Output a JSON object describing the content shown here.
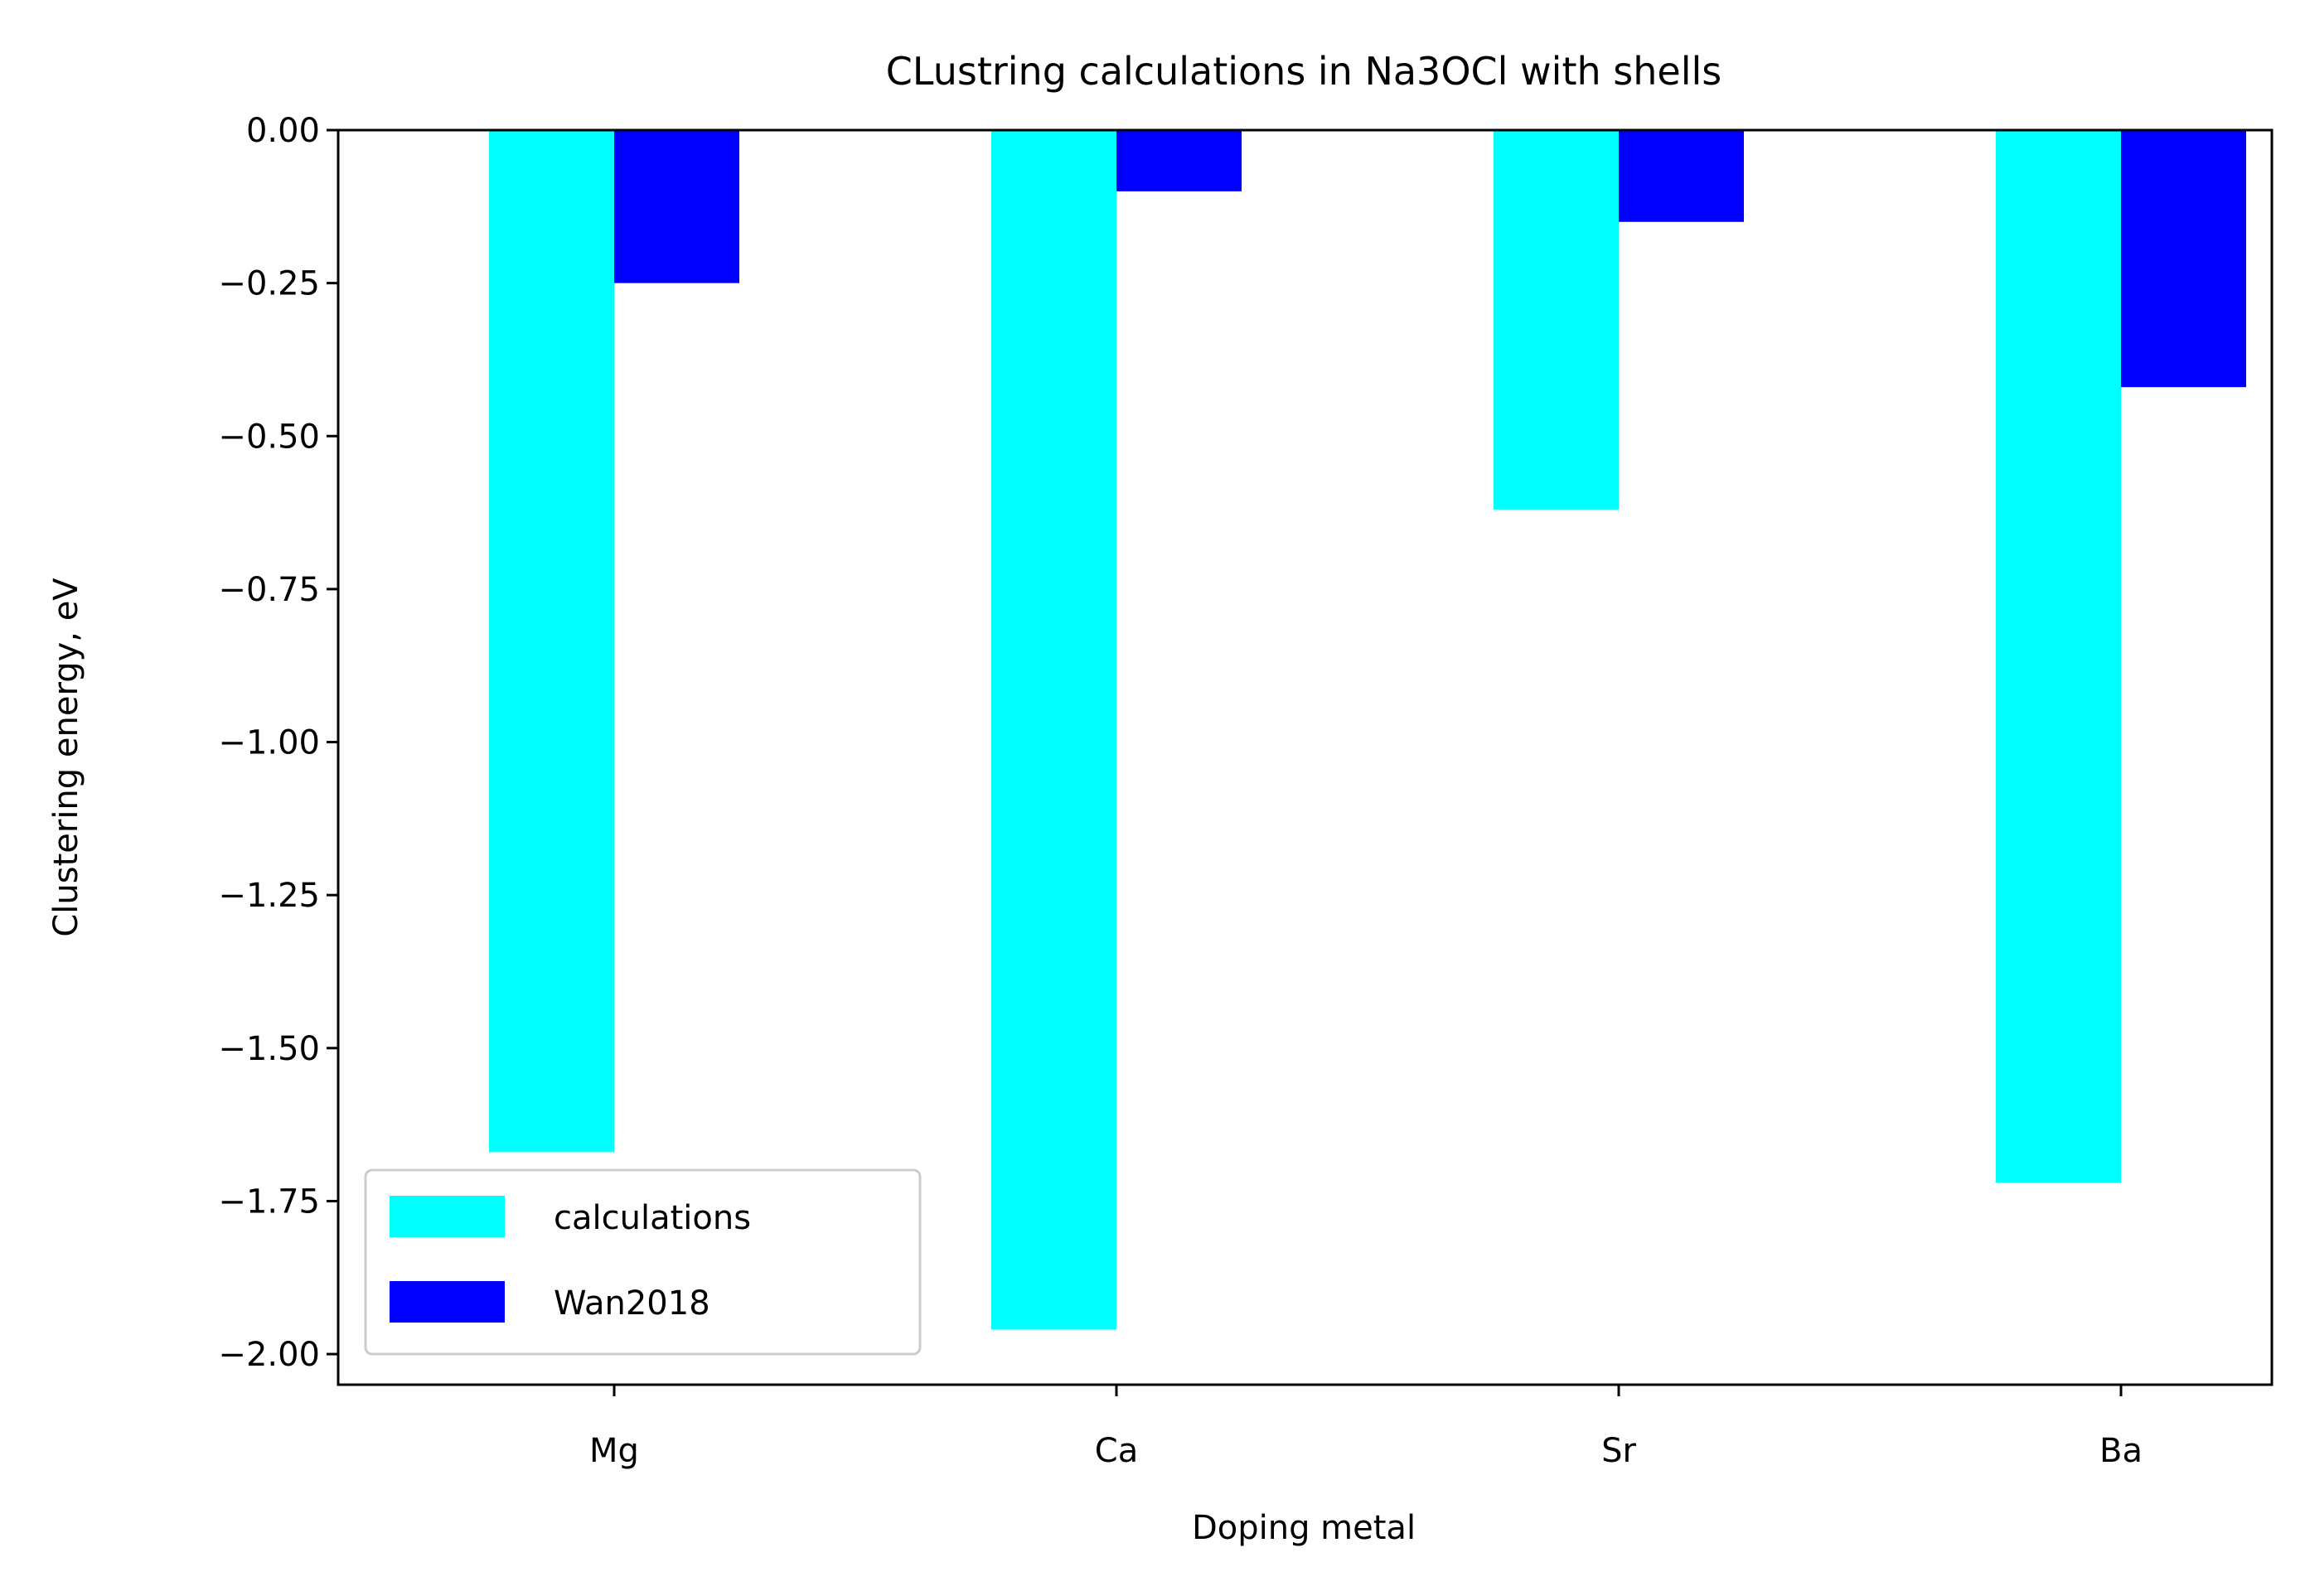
{
  "chart_data": {
    "type": "bar",
    "title": "CLustring calculations in Na3OCl with shells",
    "xlabel": "Doping metal",
    "ylabel": "Clustering energy, eV",
    "categories": [
      "Mg",
      "Ca",
      "Sr",
      "Ba"
    ],
    "series": [
      {
        "name": "calculations",
        "color": "#00ffff",
        "values": [
          -1.67,
          -1.96,
          -0.62,
          -1.72
        ]
      },
      {
        "name": "Wan2018",
        "color": "#0000ff",
        "values": [
          -0.25,
          -0.1,
          -0.15,
          -0.42
        ]
      }
    ],
    "ylim": [
      -2.05,
      0.0
    ],
    "yticks": [
      0.0,
      -0.25,
      -0.5,
      -0.75,
      -1.0,
      -1.25,
      -1.5,
      -1.75,
      -2.0
    ],
    "ytick_labels": [
      "0.00",
      "−0.25",
      "−0.50",
      "−0.75",
      "−1.00",
      "−1.25",
      "−1.50",
      "−1.75",
      "−2.00"
    ],
    "grid": false,
    "legend_position": "lower-left"
  }
}
